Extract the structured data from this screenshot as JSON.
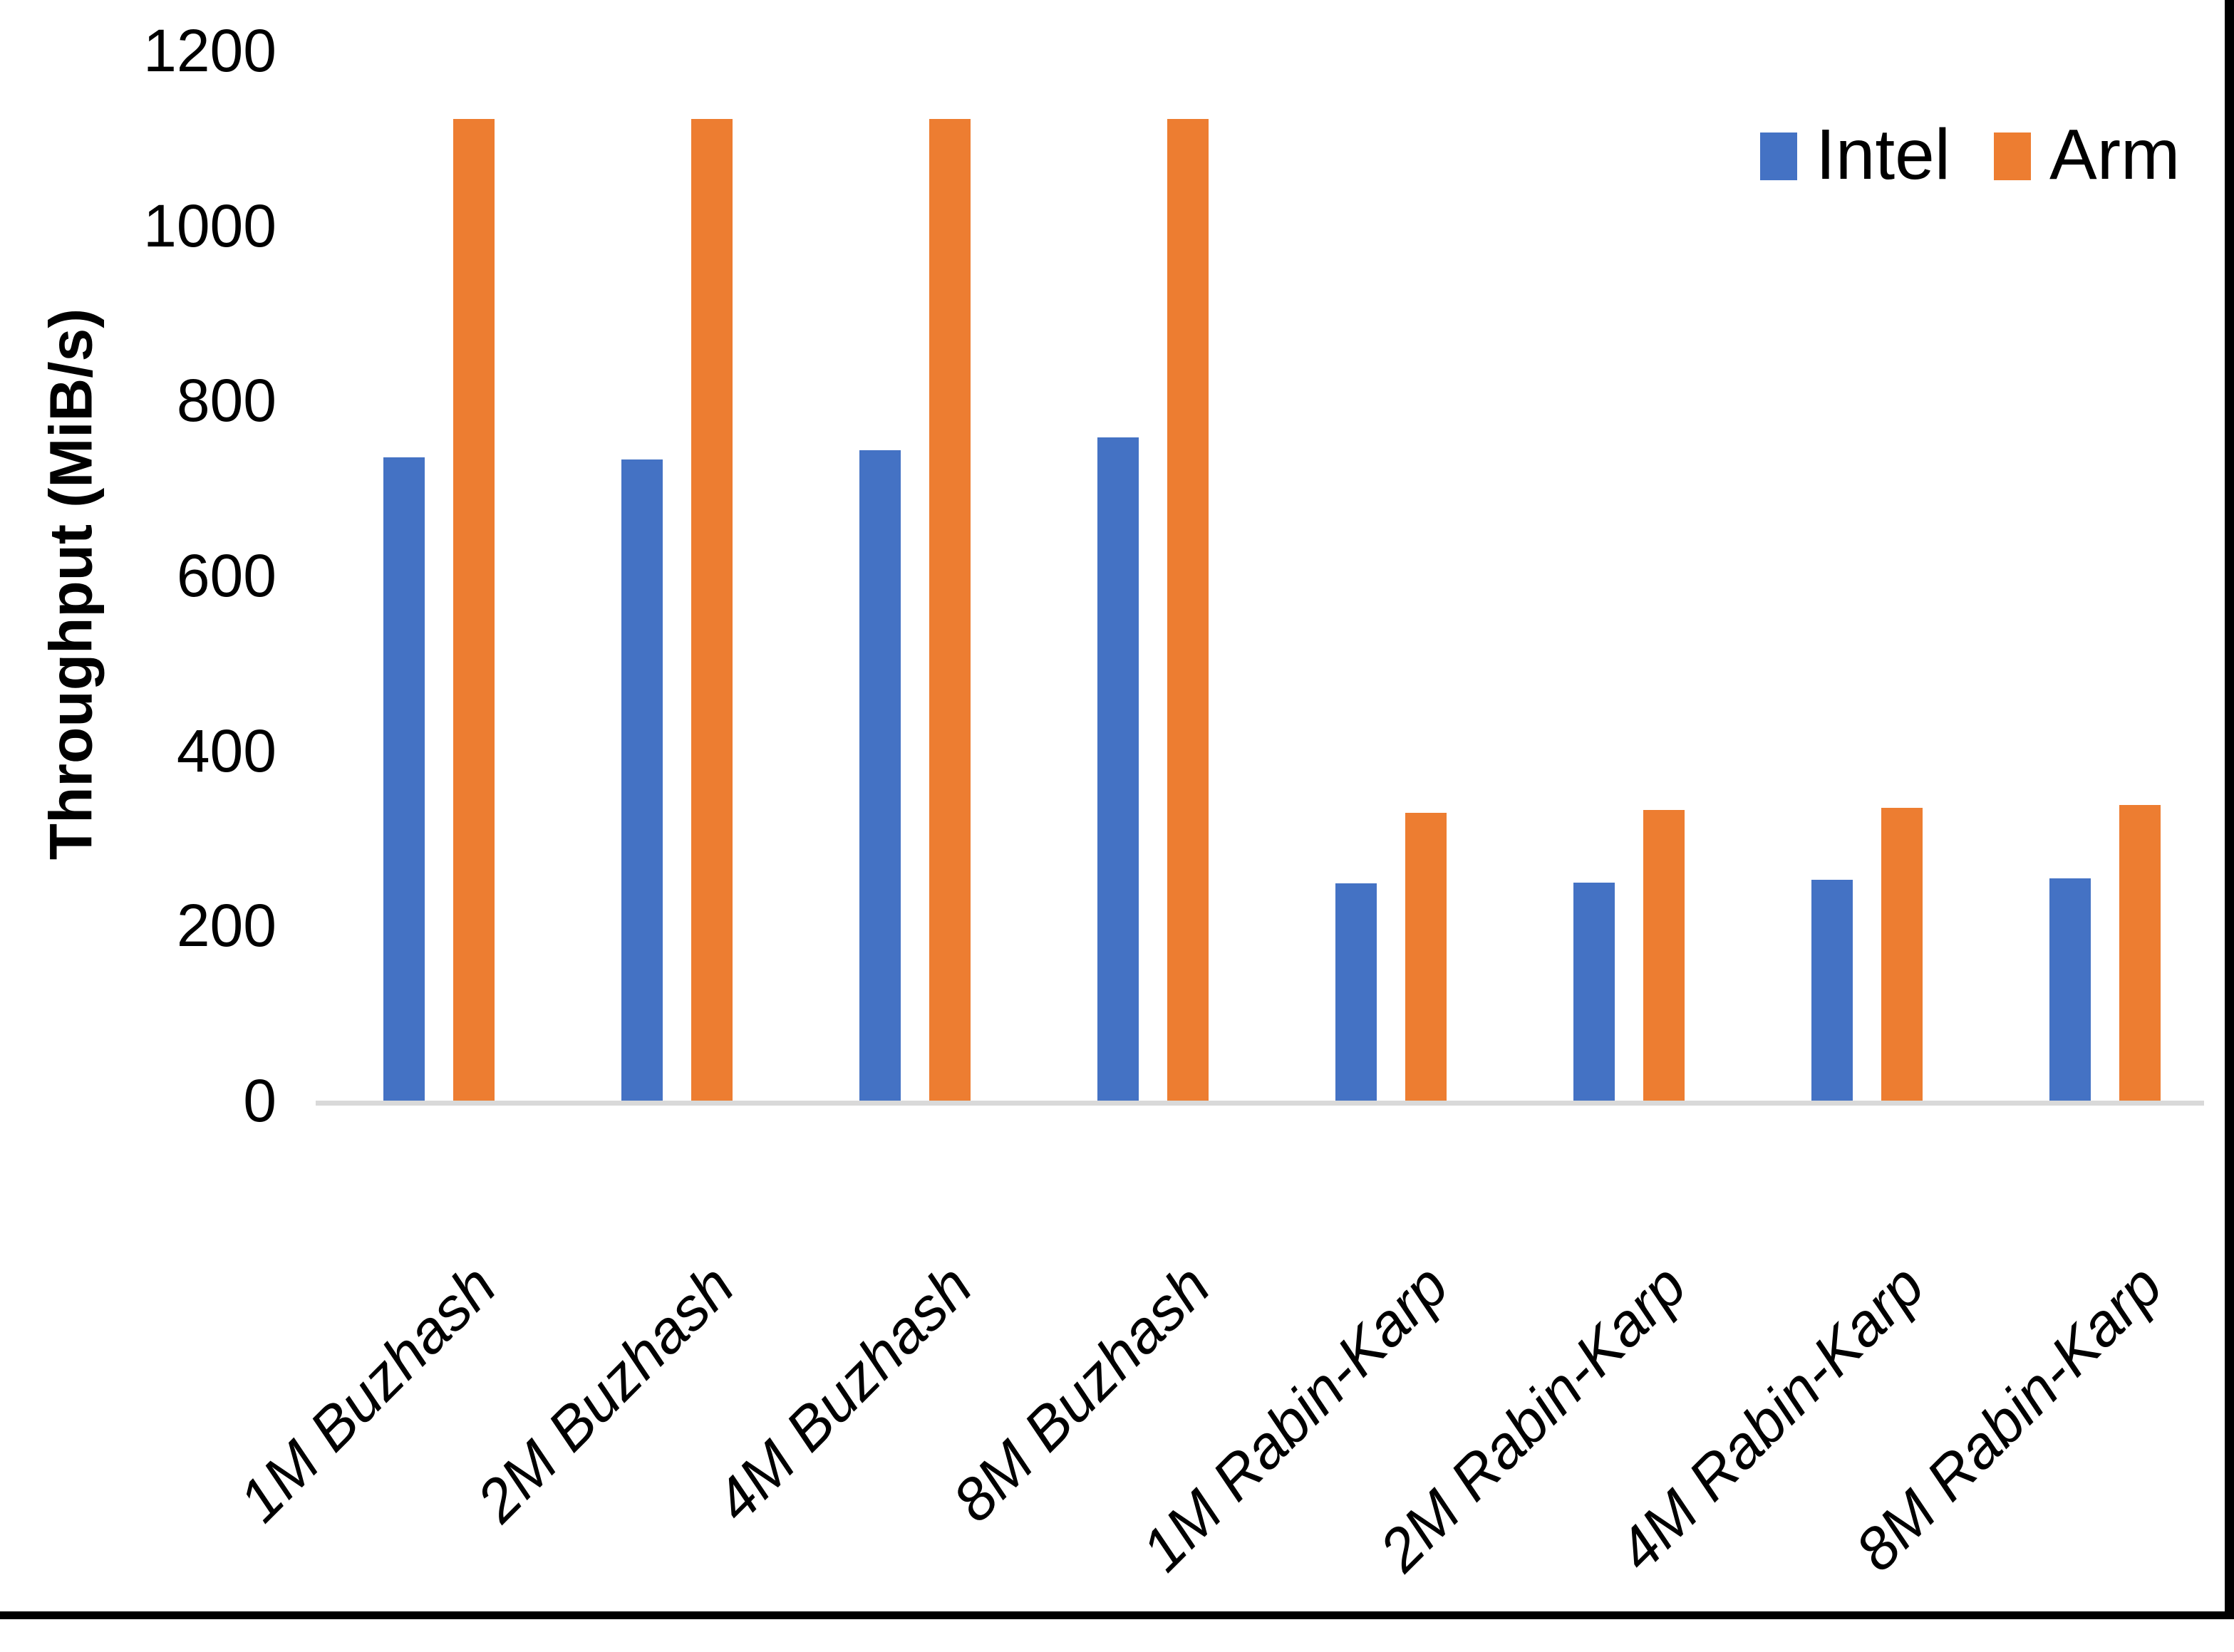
{
  "chart_data": {
    "type": "bar",
    "title": "",
    "xlabel": "",
    "ylabel": "Throughput (MiB/s)",
    "categories": [
      "1M Buzhash",
      "2M Buzhash",
      "4M Buzhash",
      "8M Buzhash",
      "1M Rabin-Karp",
      "2M Rabin-Karp",
      "4M Rabin-Karp",
      "8M Rabin-Karp"
    ],
    "series": [
      {
        "name": "Intel",
        "color": "#4472C4",
        "values": [
          735,
          733,
          743,
          758,
          248,
          249,
          252,
          254
        ]
      },
      {
        "name": "Arm",
        "color": "#ED7D31",
        "values": [
          1122,
          1122,
          1122,
          1122,
          329,
          332,
          335,
          338
        ]
      }
    ],
    "ylim": [
      0,
      1200
    ],
    "yticks": [
      0,
      200,
      400,
      600,
      800,
      1000,
      1200
    ],
    "grid": false,
    "legend_position": "top-right",
    "category_label_rotation_deg": 45,
    "category_label_style": "italic"
  },
  "axes": {
    "y_title": "Throughput (MiB/s)",
    "y_tick_labels": [
      "1200",
      "1000",
      "800",
      "600",
      "400",
      "200",
      "0"
    ]
  },
  "legend": {
    "items": [
      {
        "label": "Intel",
        "color": "#4472C4"
      },
      {
        "label": "Arm",
        "color": "#ED7D31"
      }
    ]
  },
  "colors": {
    "intel_bar": "#4472C4",
    "arm_bar": "#ED7D31",
    "axis_line": "#D9D9D9",
    "text": "#000000",
    "background": "#FFFFFF",
    "edge_border": "#000000"
  }
}
